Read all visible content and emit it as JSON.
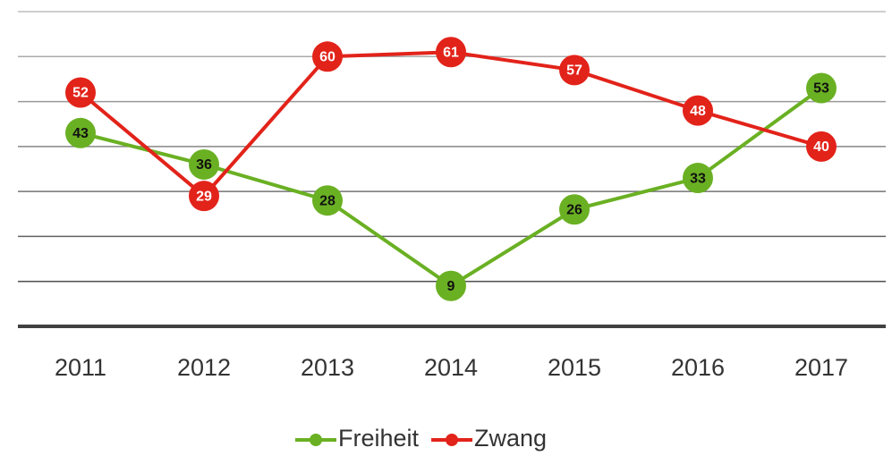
{
  "chart_data": {
    "type": "line",
    "categories": [
      "2011",
      "2012",
      "2013",
      "2014",
      "2015",
      "2016",
      "2017"
    ],
    "series": [
      {
        "name": "Freiheit",
        "color": "#6ab023",
        "values": [
          43,
          36,
          28,
          9,
          26,
          33,
          53
        ]
      },
      {
        "name": "Zwang",
        "color": "#e2231a",
        "values": [
          52,
          29,
          60,
          61,
          57,
          48,
          40
        ]
      }
    ],
    "ylim": [
      0,
      70
    ],
    "yticks": [
      0,
      10,
      20,
      30,
      40,
      50,
      60,
      70
    ],
    "grid": true,
    "legend": "bottom"
  }
}
